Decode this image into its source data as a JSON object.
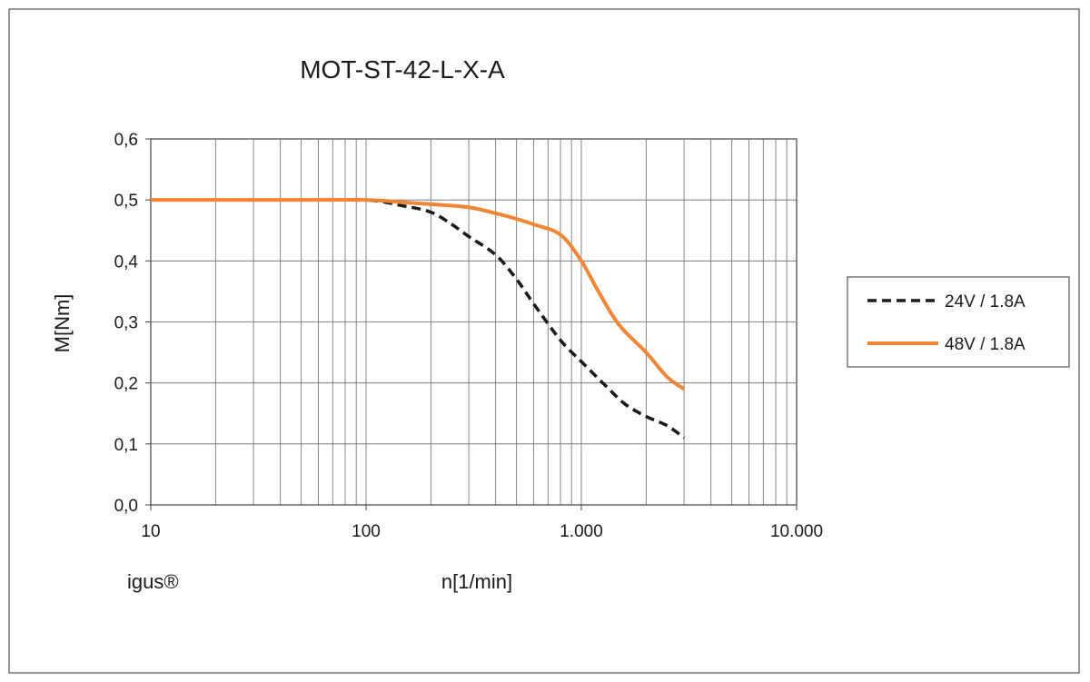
{
  "chart_data": {
    "type": "line",
    "title": "MOT-ST-42-L-X-A",
    "xlabel": "n[1/min]",
    "ylabel": "M[Nm]",
    "x_scale": "log",
    "xlim": [
      10,
      10000
    ],
    "ylim": [
      0,
      0.6
    ],
    "x_ticks": [
      "10",
      "100",
      "1.000",
      "10.000"
    ],
    "y_ticks": [
      "0,0",
      "0,1",
      "0,2",
      "0,3",
      "0,4",
      "0,5",
      "0,6"
    ],
    "grid": true,
    "legend_position": "right",
    "brand_label": "igus®",
    "series": [
      {
        "name": "24V / 1.8A",
        "color": "#1a1a1a",
        "dash": true,
        "x": [
          10,
          50,
          100,
          150,
          200,
          250,
          300,
          400,
          500,
          600,
          800,
          1000,
          1300,
          1600,
          2000,
          2500,
          3000
        ],
        "y": [
          0.5,
          0.5,
          0.5,
          0.49,
          0.48,
          0.46,
          0.44,
          0.41,
          0.37,
          0.33,
          0.27,
          0.235,
          0.195,
          0.165,
          0.145,
          0.13,
          0.11
        ]
      },
      {
        "name": "48V / 1.8A",
        "color": "#f08535",
        "dash": false,
        "x": [
          10,
          50,
          100,
          150,
          200,
          300,
          400,
          500,
          600,
          800,
          1000,
          1200,
          1500,
          2000,
          2500,
          3000
        ],
        "y": [
          0.5,
          0.5,
          0.5,
          0.496,
          0.493,
          0.488,
          0.478,
          0.469,
          0.46,
          0.443,
          0.4,
          0.35,
          0.295,
          0.25,
          0.21,
          0.19
        ]
      }
    ]
  }
}
